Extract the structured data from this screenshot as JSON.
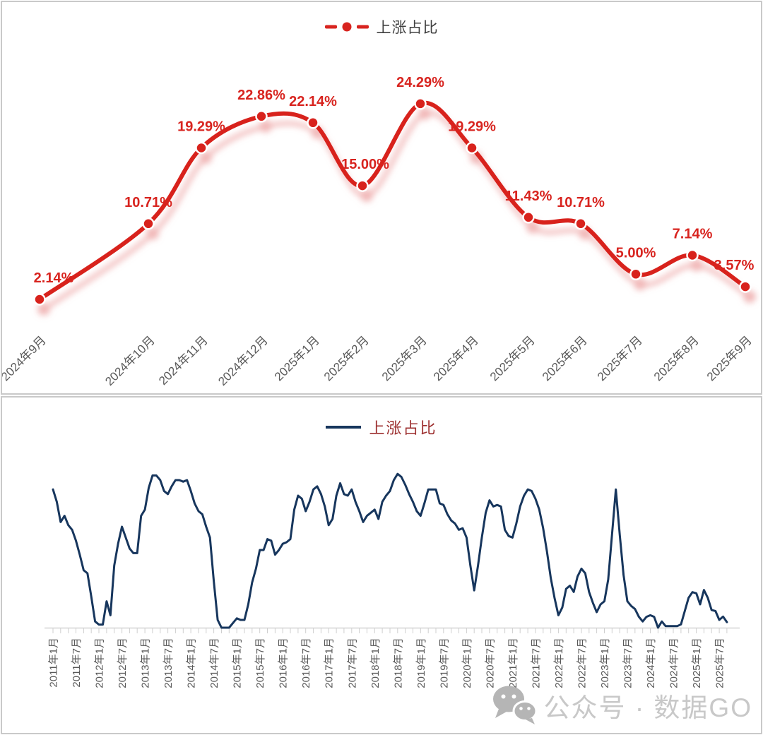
{
  "chart_data": [
    {
      "type": "line",
      "legend_label": "上涨占比",
      "legend_position": "top-center",
      "line_color": "#d8241f",
      "label_color": "#d8241f",
      "marker": "circle-white-ring",
      "shadow": "soft-pink-drop-shadow",
      "grid": false,
      "ylim": [
        0,
        27
      ],
      "categories": [
        "2024年9月",
        "2024年10月",
        "2024年11月",
        "2024年12月",
        "2025年1月",
        "2025年2月",
        "2025年3月",
        "2025年4月",
        "2025年5月",
        "2025年6月",
        "2025年7月",
        "2025年8月",
        "2025年9月"
      ],
      "values": [
        2.14,
        10.71,
        19.29,
        22.86,
        22.14,
        15.0,
        24.29,
        19.29,
        11.43,
        10.71,
        5.0,
        7.14,
        3.57
      ],
      "data_labels": [
        "2.14%",
        "10.71%",
        "19.29%",
        "22.86%",
        "22.14%",
        "15.00%",
        "24.29%",
        "19.29%",
        "11.43%",
        "10.71%",
        "5.00%",
        "7.14%",
        "3.57%"
      ]
    },
    {
      "type": "line",
      "legend_label": "上涨占比",
      "legend_text_color": "#9d3030",
      "line_color": "#17365d",
      "grid": false,
      "ylim": [
        0,
        100
      ],
      "x_frequency": "monthly",
      "x_range": [
        "2011年1月",
        "2025年9月"
      ],
      "x_tick_labels": [
        "2011年1月",
        "2011年7月",
        "2012年1月",
        "2012年7月",
        "2013年1月",
        "2013年7月",
        "2014年1月",
        "2014年7月",
        "2015年1月",
        "2015年7月",
        "2016年1月",
        "2016年7月",
        "2017年1月",
        "2017年7月",
        "2018年1月",
        "2018年7月",
        "2019年1月",
        "2019年7月",
        "2020年1月",
        "2020年7月",
        "2021年1月",
        "2021年7月",
        "2022年1月",
        "2022年7月",
        "2023年1月",
        "2023年7月",
        "2024年1月",
        "2024年7月",
        "2025年1月",
        "2025年7月"
      ],
      "values": [
        89,
        81,
        68,
        72,
        66,
        63,
        56,
        47,
        37,
        35,
        20,
        4,
        2,
        2,
        17,
        8,
        40,
        54,
        65,
        58,
        51,
        48,
        48,
        72,
        76,
        90,
        98,
        98,
        95,
        88,
        86,
        91,
        95,
        95,
        94,
        95,
        88,
        80,
        75,
        73,
        65,
        58,
        30,
        5,
        0,
        0,
        0,
        3,
        6,
        5,
        5,
        15,
        29,
        38,
        50,
        50,
        57,
        56,
        47,
        50,
        54,
        55,
        57,
        76,
        85,
        83,
        75,
        81,
        89,
        91,
        86,
        78,
        66,
        70,
        85,
        93,
        86,
        85,
        89,
        81,
        75,
        68,
        72,
        74,
        76,
        70,
        81,
        85,
        88,
        95,
        99,
        97,
        92,
        86,
        81,
        75,
        72,
        80,
        89,
        89,
        89,
        80,
        79,
        73,
        69,
        67,
        63,
        64,
        58,
        40,
        24,
        40,
        58,
        74,
        82,
        78,
        79,
        78,
        63,
        59,
        58,
        67,
        78,
        85,
        89,
        88,
        83,
        76,
        64,
        49,
        32,
        19,
        8,
        13,
        25,
        27,
        23,
        33,
        38,
        35,
        23,
        16,
        10,
        15,
        17,
        31,
        60,
        89,
        60,
        34,
        17,
        14,
        12,
        7,
        4,
        7,
        8,
        7,
        0,
        4,
        1,
        1,
        1,
        1,
        2.14,
        10.71,
        19.29,
        22.86,
        22.14,
        15,
        24.29,
        19.29,
        11.43,
        10.71,
        5,
        7.14,
        3.57
      ]
    }
  ],
  "watermark": {
    "text": "公众号 · 数据GO",
    "icon": "wechat-icon",
    "color": "#c8c8c8"
  }
}
